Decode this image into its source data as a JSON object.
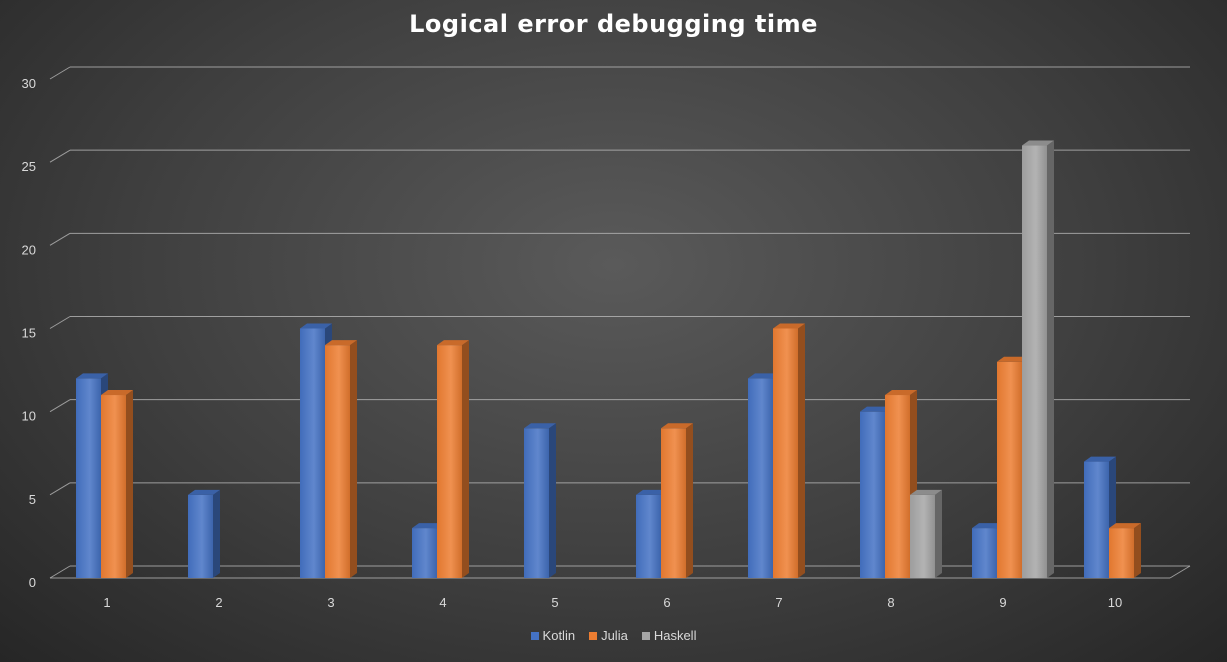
{
  "chart_data": {
    "type": "bar",
    "title": "Logical error debugging time",
    "xlabel": "",
    "ylabel": "",
    "categories": [
      "1",
      "2",
      "3",
      "4",
      "5",
      "6",
      "7",
      "8",
      "9",
      "10"
    ],
    "series": [
      {
        "name": "Kotlin",
        "color": "#4472c4",
        "values": [
          12,
          5,
          15,
          3,
          9,
          5,
          12,
          10,
          3,
          7
        ]
      },
      {
        "name": "Julia",
        "color": "#ed7d31",
        "values": [
          11,
          0,
          14,
          14,
          0,
          9,
          15,
          11,
          13,
          3
        ]
      },
      {
        "name": "Haskell",
        "color": "#a5a5a5",
        "values": [
          0,
          0,
          0,
          0,
          0,
          0,
          0,
          5,
          26,
          0
        ]
      }
    ],
    "ylim": [
      0,
      30
    ],
    "yticks": [
      0,
      5,
      10,
      15,
      20,
      25,
      30
    ],
    "grid": true,
    "legend": "bottom",
    "style": "3d-column"
  }
}
